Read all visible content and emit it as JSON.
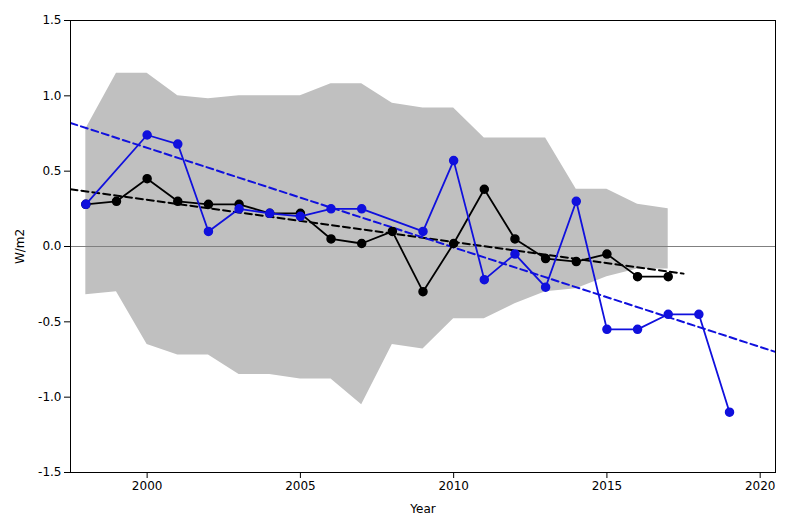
{
  "chart_data": {
    "type": "line",
    "xlabel": "Year",
    "ylabel": "W/m2",
    "xlim": [
      1997.5,
      2020.5
    ],
    "ylim": [
      -1.5,
      1.5
    ],
    "xticks": [
      2000,
      2005,
      2010,
      2015,
      2020
    ],
    "yticks": [
      -1.5,
      {
        "value": -1.0,
        "label": "-1.0"
      },
      -0.5,
      {
        "value": 0.0,
        "label": "0.0"
      },
      0.5,
      {
        "value": 1.0,
        "label": "1.0"
      },
      1.5
    ],
    "grid": false,
    "band": {
      "x": [
        1998,
        1999,
        2000,
        2001,
        2002,
        2003,
        2004,
        2005,
        2006,
        2007,
        2008,
        2009,
        2010,
        2011,
        2012,
        2013,
        2014,
        2015,
        2016,
        2017
      ],
      "upper": [
        0.78,
        1.15,
        1.15,
        1.0,
        0.98,
        1.0,
        1.0,
        1.0,
        1.08,
        1.08,
        0.95,
        0.92,
        0.92,
        0.72,
        0.72,
        0.72,
        0.38,
        0.38,
        0.28,
        0.25
      ],
      "lower": [
        -0.32,
        -0.3,
        -0.65,
        -0.72,
        -0.72,
        -0.85,
        -0.85,
        -0.88,
        -0.88,
        -1.05,
        -0.65,
        -0.68,
        -0.48,
        -0.48,
        -0.38,
        -0.3,
        -0.28,
        -0.2,
        -0.15,
        -0.15
      ],
      "color": "#c0c0c0"
    },
    "zero_line": {
      "y": 0,
      "color": "#808080"
    },
    "series": [
      {
        "x": [
          1997.5,
          2017.5
        ],
        "values": [
          0.38,
          -0.18
        ],
        "color": "#000000",
        "line_style": "dashed"
      },
      {
        "x": [
          1997.5,
          2020.5
        ],
        "values": [
          0.82,
          -0.7
        ],
        "color": "#1010dd",
        "line_style": "dashed"
      },
      {
        "x": [
          1998,
          1999,
          2000,
          2001,
          2002,
          2003,
          2004,
          2005,
          2006,
          2007,
          2008,
          2009,
          2010,
          2011,
          2012,
          2013,
          2014,
          2015,
          2016,
          2017
        ],
        "values": [
          0.28,
          0.3,
          0.45,
          0.3,
          0.28,
          0.28,
          0.22,
          0.22,
          0.05,
          0.02,
          0.1,
          -0.3,
          0.02,
          0.38,
          0.05,
          -0.08,
          -0.1,
          -0.05,
          -0.2,
          -0.2
        ],
        "color": "#000000",
        "line_style": "solid",
        "marker": "o"
      },
      {
        "x": [
          1998,
          2000,
          2001,
          2002,
          2003,
          2004,
          2005,
          2006,
          2007,
          2009,
          2010,
          2011,
          2012,
          2013,
          2014,
          2015,
          2016,
          2017,
          2018,
          2019
        ],
        "values": [
          0.28,
          0.74,
          0.68,
          0.1,
          0.25,
          0.22,
          0.2,
          0.25,
          0.25,
          0.1,
          0.57,
          -0.22,
          -0.05,
          -0.27,
          0.3,
          -0.55,
          -0.55,
          -0.45,
          -0.45,
          -1.1
        ],
        "color": "#1010dd",
        "line_style": "solid",
        "marker": "o"
      }
    ]
  }
}
